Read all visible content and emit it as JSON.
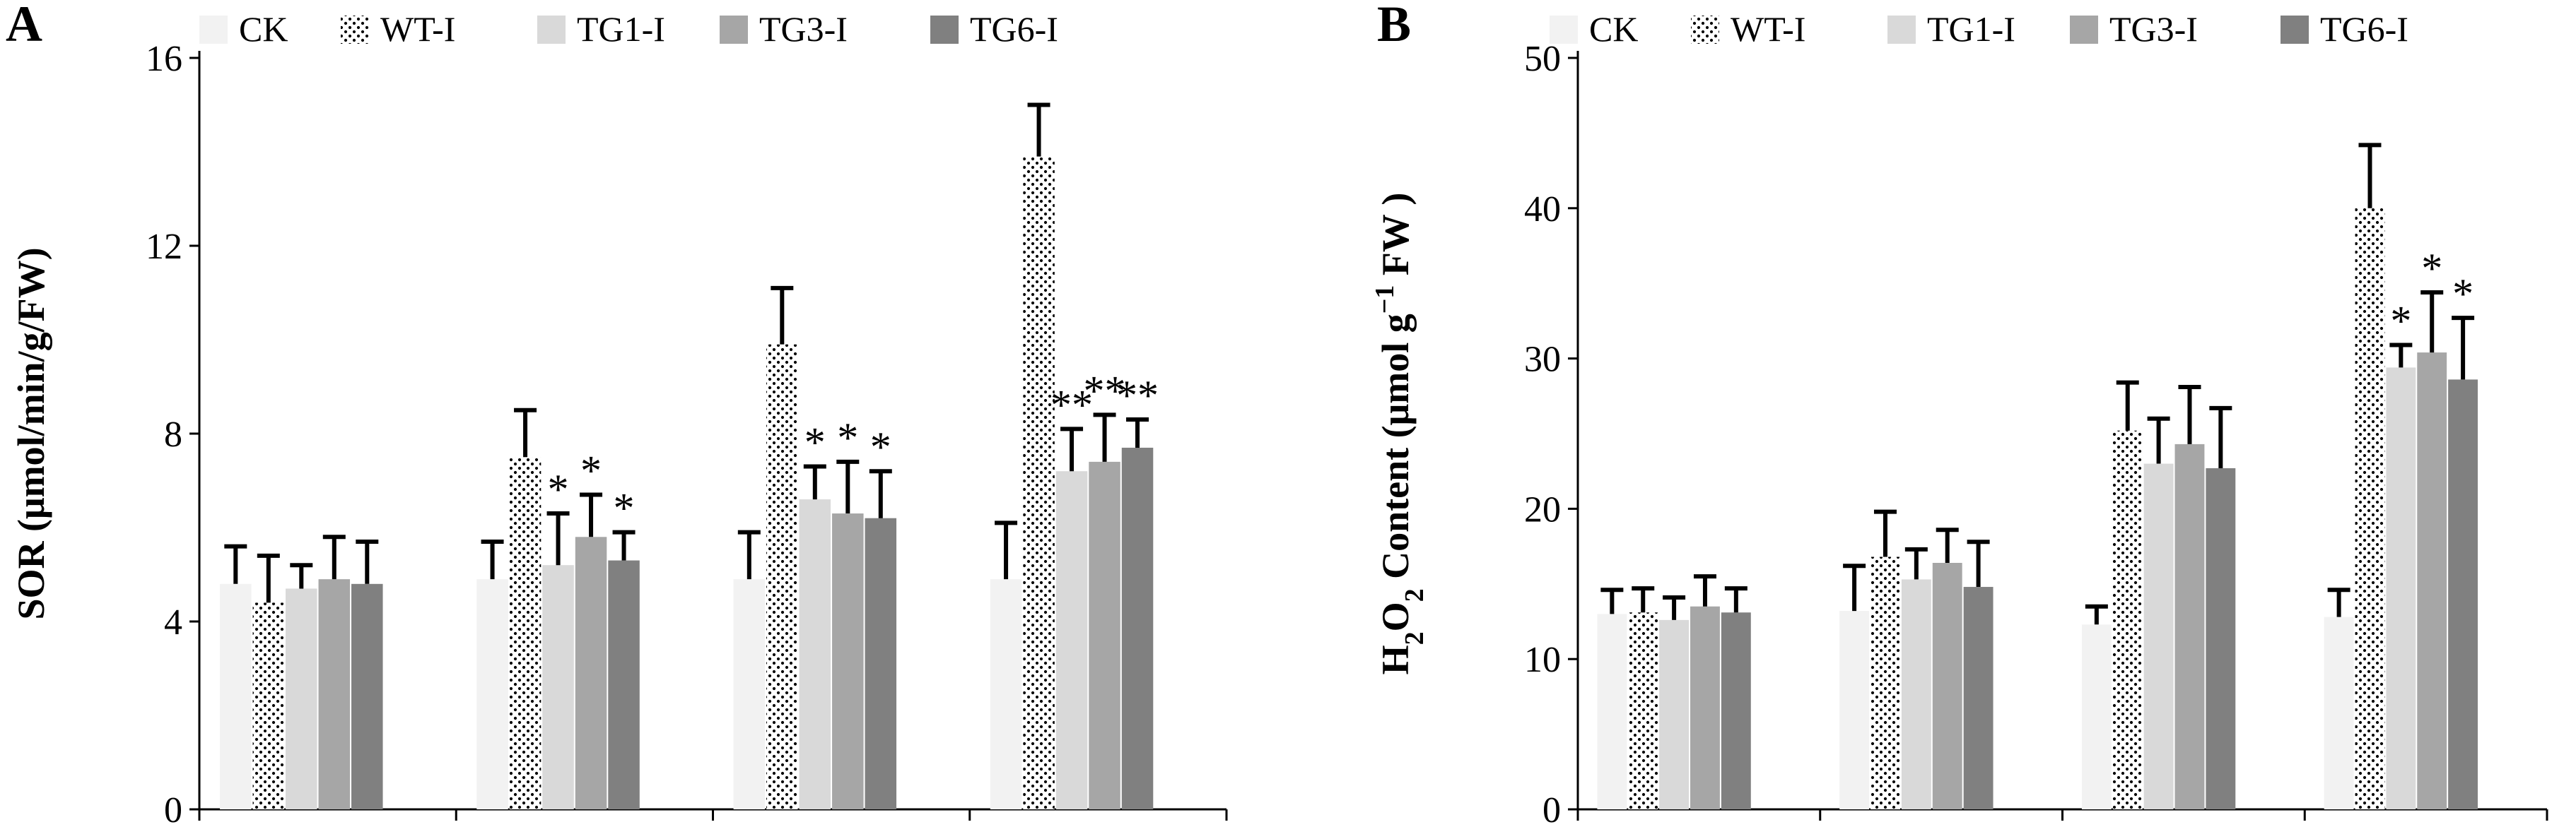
{
  "colors": {
    "CK": "#f2f2f2",
    "TG1-I": "#d9d9d9",
    "TG3-I": "#a6a6a6",
    "TG6-I": "#808080",
    "dots": "#000000"
  },
  "series_names": [
    "CK",
    "WT-I",
    "TG1-I",
    "TG3-I",
    "TG6-I"
  ],
  "chart_data": [
    {
      "type": "bar",
      "panel": "A",
      "title": "",
      "xlabel": "",
      "ylabel_parts": [
        "SOR (μmol/min/g/FW)"
      ],
      "ylim": [
        0,
        16
      ],
      "yticks": [
        0,
        4,
        8,
        12,
        16
      ],
      "categories": [
        "",
        "",
        "",
        ""
      ],
      "series": [
        {
          "name": "CK",
          "values": [
            4.8,
            4.9,
            4.9,
            4.9
          ],
          "errors": [
            0.8,
            0.8,
            1.0,
            1.2
          ]
        },
        {
          "name": "WT-I",
          "values": [
            4.4,
            7.5,
            9.9,
            13.9
          ],
          "errors": [
            1.0,
            1.0,
            1.2,
            1.1
          ]
        },
        {
          "name": "TG1-I",
          "values": [
            4.7,
            5.2,
            6.6,
            7.2
          ],
          "errors": [
            0.5,
            1.1,
            0.7,
            0.9
          ]
        },
        {
          "name": "TG3-I",
          "values": [
            4.9,
            5.8,
            6.3,
            7.4
          ],
          "errors": [
            0.9,
            0.9,
            1.1,
            1.0
          ]
        },
        {
          "name": "TG6-I",
          "values": [
            4.8,
            5.3,
            6.2,
            7.7
          ],
          "errors": [
            0.9,
            0.6,
            1.0,
            0.6
          ]
        }
      ],
      "annotations": [
        {
          "category": 1,
          "series": "TG1-I",
          "text": "*"
        },
        {
          "category": 1,
          "series": "TG3-I",
          "text": "*"
        },
        {
          "category": 1,
          "series": "TG6-I",
          "text": "*"
        },
        {
          "category": 2,
          "series": "TG1-I",
          "text": "*"
        },
        {
          "category": 2,
          "series": "TG3-I",
          "text": "*"
        },
        {
          "category": 2,
          "series": "TG6-I",
          "text": "*"
        },
        {
          "category": 3,
          "series": "TG1-I",
          "text": "**"
        },
        {
          "category": 3,
          "series": "TG3-I",
          "text": "**"
        },
        {
          "category": 3,
          "series": "TG6-I",
          "text": "**"
        }
      ]
    },
    {
      "type": "bar",
      "panel": "B",
      "title": "",
      "xlabel": "",
      "ylabel_parts": [
        "H",
        "2",
        "O",
        "2",
        " Content (μmol g",
        "−1",
        " FW )"
      ],
      "ylim": [
        0,
        50
      ],
      "yticks": [
        0,
        10,
        20,
        30,
        40,
        50
      ],
      "categories": [
        "",
        "",
        "",
        ""
      ],
      "series": [
        {
          "name": "CK",
          "values": [
            13.0,
            13.2,
            12.3,
            12.8
          ],
          "errors": [
            1.6,
            3.0,
            1.2,
            1.8
          ]
        },
        {
          "name": "WT-I",
          "values": [
            13.1,
            16.8,
            25.2,
            40.0
          ],
          "errors": [
            1.6,
            3.0,
            3.2,
            4.2
          ]
        },
        {
          "name": "TG1-I",
          "values": [
            12.6,
            15.3,
            23.0,
            29.4
          ],
          "errors": [
            1.5,
            2.0,
            3.0,
            1.5
          ]
        },
        {
          "name": "TG3-I",
          "values": [
            13.5,
            16.4,
            24.3,
            30.4
          ],
          "errors": [
            2.0,
            2.2,
            3.8,
            4.0
          ]
        },
        {
          "name": "TG6-I",
          "values": [
            13.1,
            14.8,
            22.7,
            28.6
          ],
          "errors": [
            1.6,
            3.0,
            4.0,
            4.1
          ]
        }
      ],
      "annotations": [
        {
          "category": 3,
          "series": "TG1-I",
          "text": "*"
        },
        {
          "category": 3,
          "series": "TG3-I",
          "text": "*"
        },
        {
          "category": 3,
          "series": "TG6-I",
          "text": "*"
        }
      ]
    }
  ]
}
